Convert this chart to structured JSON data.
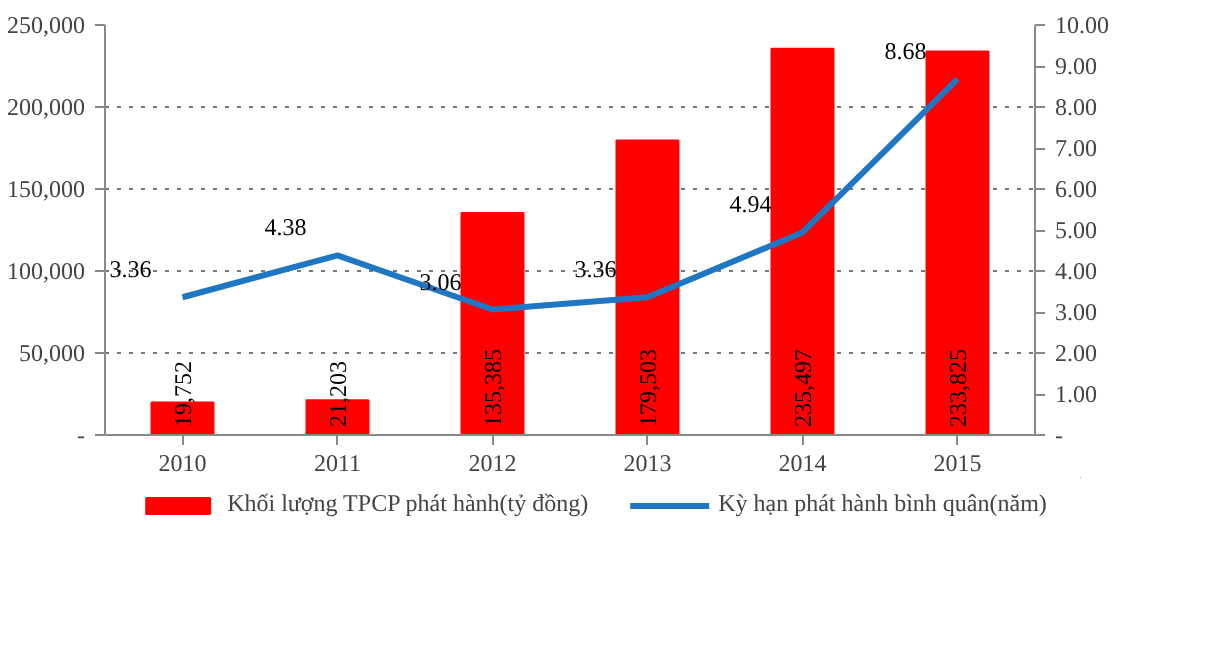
{
  "chart_data": {
    "type": "bar",
    "categories": [
      "2010",
      "2011",
      "2012",
      "2013",
      "2014",
      "2015"
    ],
    "series": [
      {
        "name": "Khối lượng TPCP phát hành(tỷ đồng)",
        "color": "#ff0000",
        "values": [
          19752,
          21203,
          135385,
          179503,
          235497,
          233825
        ],
        "value_labels": [
          "19,752",
          "21,203",
          "135,385",
          "179,503",
          "235,497",
          "233,825"
        ]
      },
      {
        "name": "Kỳ hạn phát hành bình quân(năm)",
        "type": "line",
        "axis": "y2",
        "color": "#1f77c4",
        "values": [
          3.36,
          4.38,
          3.06,
          3.36,
          4.94,
          8.68
        ],
        "value_labels": [
          "3.36",
          "4.38",
          "3.06",
          "3.36",
          "4.94",
          "8.68"
        ]
      }
    ],
    "ylim": [
      0,
      250000
    ],
    "yticks": [
      {
        "value": 0,
        "label": "-"
      },
      {
        "value": 50000,
        "label": "50,000"
      },
      {
        "value": 100000,
        "label": "100,000"
      },
      {
        "value": 150000,
        "label": "150,000"
      },
      {
        "value": 200000,
        "label": "200,000"
      },
      {
        "value": 250000,
        "label": "250,000"
      }
    ],
    "y2lim": [
      0,
      10
    ],
    "y2ticks": [
      {
        "value": 0,
        "label": "-"
      },
      {
        "value": 1,
        "label": "1.00"
      },
      {
        "value": 2,
        "label": "2.00"
      },
      {
        "value": 3,
        "label": "3.00"
      },
      {
        "value": 4,
        "label": "4.00"
      },
      {
        "value": 5,
        "label": "5.00"
      },
      {
        "value": 6,
        "label": "6.00"
      },
      {
        "value": 7,
        "label": "7.00"
      },
      {
        "value": 8,
        "label": "8.00"
      },
      {
        "value": 9,
        "label": "9.00"
      },
      {
        "value": 10,
        "label": "10.00"
      }
    ],
    "grid": "y",
    "legend": "bottom",
    "marker": "none"
  }
}
